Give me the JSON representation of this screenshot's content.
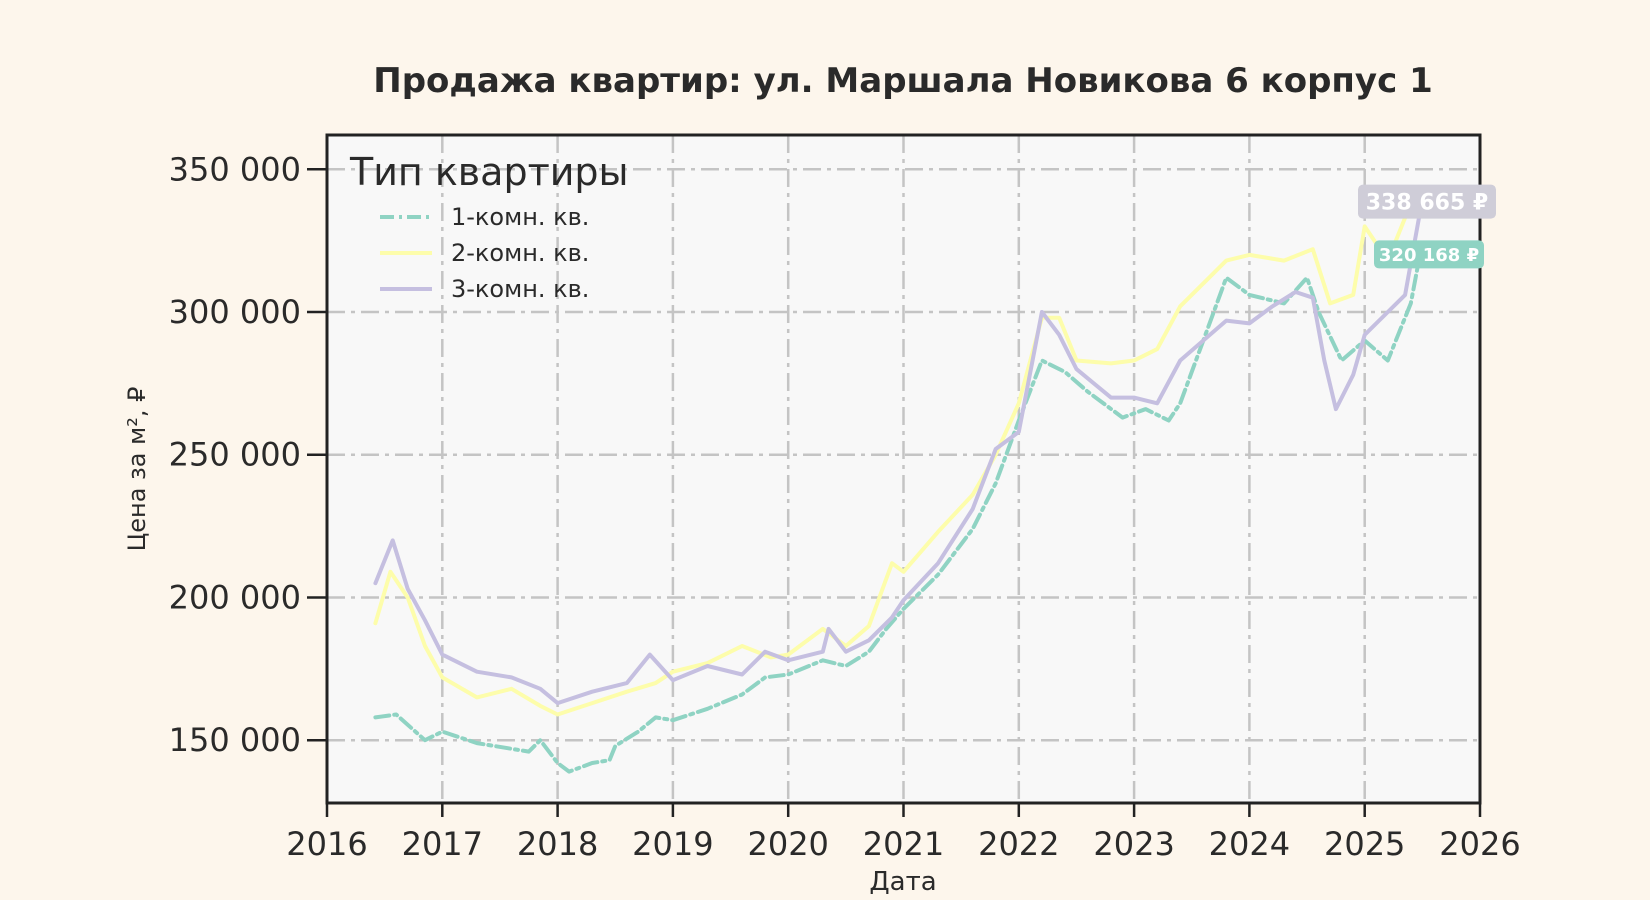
{
  "chart_data": {
    "type": "line",
    "title": "Продажа квартир: ул. Маршала Новикова 6 корпус 1",
    "xlabel": "Дата",
    "ylabel": "Цена за м², ₽",
    "xlim": [
      2016,
      2026
    ],
    "ylim": [
      128000,
      362000
    ],
    "x_ticks": [
      "2016",
      "2017",
      "2018",
      "2019",
      "2020",
      "2021",
      "2022",
      "2023",
      "2024",
      "2025",
      "2026"
    ],
    "y_ticks": [
      {
        "value": 150000,
        "label": "150 000"
      },
      {
        "value": 200000,
        "label": "200 000"
      },
      {
        "value": 250000,
        "label": "250 000"
      },
      {
        "value": 300000,
        "label": "300 000"
      },
      {
        "value": 350000,
        "label": "350 000"
      }
    ],
    "grid": true,
    "legend_title": "Тип квартиры",
    "legend_position": "top-left",
    "series": [
      {
        "name": "1-комн. кв.",
        "color": "#8fd3c3",
        "style": "dash-dot",
        "points": [
          [
            2016.42,
            158000
          ],
          [
            2016.6,
            159000
          ],
          [
            2016.85,
            150000
          ],
          [
            2017.0,
            153000
          ],
          [
            2017.3,
            149000
          ],
          [
            2017.6,
            147000
          ],
          [
            2017.75,
            146000
          ],
          [
            2017.85,
            150000
          ],
          [
            2018.0,
            142000
          ],
          [
            2018.1,
            139000
          ],
          [
            2018.3,
            142000
          ],
          [
            2018.45,
            143000
          ],
          [
            2018.5,
            148000
          ],
          [
            2018.7,
            153000
          ],
          [
            2018.85,
            158000
          ],
          [
            2019.0,
            157000
          ],
          [
            2019.3,
            161000
          ],
          [
            2019.6,
            166000
          ],
          [
            2019.8,
            172000
          ],
          [
            2020.0,
            173000
          ],
          [
            2020.3,
            178000
          ],
          [
            2020.5,
            176000
          ],
          [
            2020.7,
            181000
          ],
          [
            2020.85,
            189000
          ],
          [
            2021.0,
            196000
          ],
          [
            2021.3,
            208000
          ],
          [
            2021.6,
            224000
          ],
          [
            2021.8,
            240000
          ],
          [
            2022.0,
            262000
          ],
          [
            2022.2,
            283000
          ],
          [
            2022.4,
            279000
          ],
          [
            2022.6,
            272000
          ],
          [
            2022.9,
            263000
          ],
          [
            2023.1,
            266000
          ],
          [
            2023.3,
            262000
          ],
          [
            2023.4,
            268000
          ],
          [
            2023.6,
            290000
          ],
          [
            2023.8,
            312000
          ],
          [
            2024.0,
            306000
          ],
          [
            2024.3,
            303000
          ],
          [
            2024.5,
            312000
          ],
          [
            2024.6,
            300000
          ],
          [
            2024.8,
            283000
          ],
          [
            2025.0,
            290000
          ],
          [
            2025.2,
            283000
          ],
          [
            2025.4,
            303000
          ],
          [
            2025.48,
            320168
          ]
        ]
      },
      {
        "name": "2-комн. кв.",
        "color": "#fdfdab",
        "style": "solid",
        "points": [
          [
            2016.42,
            191000
          ],
          [
            2016.55,
            209000
          ],
          [
            2016.7,
            200000
          ],
          [
            2016.85,
            183000
          ],
          [
            2017.0,
            172000
          ],
          [
            2017.3,
            165000
          ],
          [
            2017.6,
            168000
          ],
          [
            2017.85,
            162000
          ],
          [
            2018.0,
            159000
          ],
          [
            2018.3,
            163000
          ],
          [
            2018.6,
            167000
          ],
          [
            2018.85,
            170000
          ],
          [
            2019.0,
            174000
          ],
          [
            2019.3,
            177000
          ],
          [
            2019.6,
            183000
          ],
          [
            2019.85,
            179000
          ],
          [
            2020.0,
            180000
          ],
          [
            2020.3,
            189000
          ],
          [
            2020.5,
            183000
          ],
          [
            2020.7,
            190000
          ],
          [
            2020.9,
            212000
          ],
          [
            2021.0,
            209000
          ],
          [
            2021.3,
            223000
          ],
          [
            2021.6,
            236000
          ],
          [
            2021.8,
            250000
          ],
          [
            2022.0,
            268000
          ],
          [
            2022.2,
            298000
          ],
          [
            2022.35,
            298000
          ],
          [
            2022.5,
            283000
          ],
          [
            2022.8,
            282000
          ],
          [
            2023.0,
            283000
          ],
          [
            2023.2,
            287000
          ],
          [
            2023.4,
            302000
          ],
          [
            2023.6,
            310000
          ],
          [
            2023.8,
            318000
          ],
          [
            2024.0,
            320000
          ],
          [
            2024.3,
            318000
          ],
          [
            2024.55,
            322000
          ],
          [
            2024.7,
            303000
          ],
          [
            2024.9,
            306000
          ],
          [
            2025.0,
            330000
          ],
          [
            2025.2,
            318000
          ],
          [
            2025.35,
            333000
          ],
          [
            2025.48,
            338665
          ]
        ]
      },
      {
        "name": "3-комн. кв.",
        "color": "#c5bfe0",
        "style": "solid",
        "points": [
          [
            2016.42,
            205000
          ],
          [
            2016.57,
            220000
          ],
          [
            2016.7,
            203000
          ],
          [
            2016.85,
            192000
          ],
          [
            2017.0,
            180000
          ],
          [
            2017.3,
            174000
          ],
          [
            2017.6,
            172000
          ],
          [
            2017.85,
            168000
          ],
          [
            2018.0,
            163000
          ],
          [
            2018.3,
            167000
          ],
          [
            2018.6,
            170000
          ],
          [
            2018.8,
            180000
          ],
          [
            2019.0,
            171000
          ],
          [
            2019.3,
            176000
          ],
          [
            2019.6,
            173000
          ],
          [
            2019.8,
            181000
          ],
          [
            2020.0,
            178000
          ],
          [
            2020.3,
            181000
          ],
          [
            2020.35,
            189000
          ],
          [
            2020.5,
            181000
          ],
          [
            2020.7,
            185000
          ],
          [
            2020.9,
            193000
          ],
          [
            2021.0,
            199000
          ],
          [
            2021.3,
            212000
          ],
          [
            2021.6,
            231000
          ],
          [
            2021.8,
            252000
          ],
          [
            2022.0,
            258000
          ],
          [
            2022.2,
            300000
          ],
          [
            2022.35,
            292000
          ],
          [
            2022.5,
            280000
          ],
          [
            2022.8,
            270000
          ],
          [
            2023.0,
            270000
          ],
          [
            2023.2,
            268000
          ],
          [
            2023.4,
            283000
          ],
          [
            2023.6,
            290000
          ],
          [
            2023.8,
            297000
          ],
          [
            2024.0,
            296000
          ],
          [
            2024.2,
            302000
          ],
          [
            2024.4,
            307000
          ],
          [
            2024.55,
            305000
          ],
          [
            2024.65,
            283000
          ],
          [
            2024.75,
            266000
          ],
          [
            2024.9,
            278000
          ],
          [
            2025.0,
            292000
          ],
          [
            2025.2,
            300000
          ],
          [
            2025.35,
            306000
          ],
          [
            2025.48,
            335000
          ]
        ]
      }
    ],
    "last_value_labels": [
      {
        "series": "2-комн. кв.",
        "value": 338665,
        "text": "338 665 ₽",
        "color": "#cfcdd8"
      },
      {
        "series": "1-комн. кв.",
        "value": 320168,
        "text": "320 168 ₽",
        "color": "#8fd3c3"
      }
    ]
  }
}
